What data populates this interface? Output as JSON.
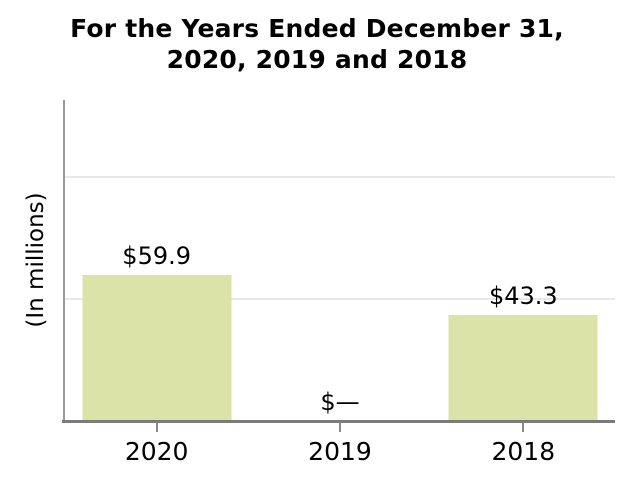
{
  "chart_data": {
    "type": "bar",
    "title": "For the Years Ended December 31,\n2020, 2019 and 2018",
    "ylabel": "(In millions)",
    "xlabel": "",
    "categories": [
      "2020",
      "2019",
      "2018"
    ],
    "values": [
      59.9,
      0,
      43.3
    ],
    "value_labels": [
      "$59.9",
      "$—",
      "$43.3"
    ],
    "ylim": [
      0,
      131.7
    ],
    "gridline_values": [
      50,
      100
    ],
    "grid": "horizontal gridlines, drawn behind bars",
    "legend_position": "none",
    "colors": {
      "bar_fill": "#dbe3a8",
      "gridline": "#e8e8e8",
      "y_axis": "#9a9a9a",
      "x_axis": "#7b7b7b",
      "tick": "#8a8a8a",
      "text": "#000000"
    }
  }
}
